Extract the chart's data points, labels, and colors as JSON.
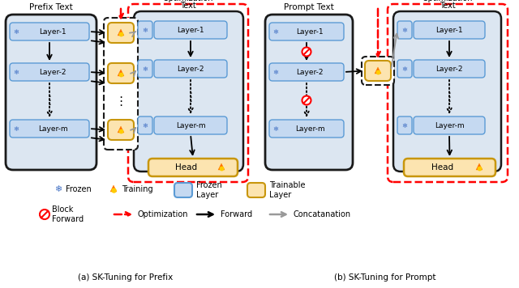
{
  "fig_width": 6.4,
  "fig_height": 3.56,
  "dpi": 100,
  "bg_color": "#ffffff",
  "frozen_box_fc": "#c5d9f1",
  "frozen_box_ec": "#5b9bd5",
  "trainable_box_fc": "#fce4b0",
  "trainable_box_ec": "#c8960c",
  "outer_box_fc": "#dce6f1",
  "outer_box_ec": "#1a1a1a",
  "snow_color": "#4472c4",
  "arrow_black": "#1a1a1a",
  "arrow_gray": "#999999",
  "arrow_red": "#ff0000",
  "block_red": "#ff0000",
  "opt_box_ec": "#ff0000",
  "title_a": "(a) SK-Tuning for Prefix",
  "title_b": "(b) SK-Tuning for Prompt",
  "prefix_text": "Prefix Text",
  "prompt_text": "Prompt Text",
  "opt_text_line1": "Optimization",
  "opt_text_line2": "Text",
  "layers": [
    "Layer-1",
    "Layer-2",
    "Layer-m"
  ],
  "head_text": "Head",
  "leg_frozen": "Frozen",
  "leg_training": "Training",
  "leg_frozen_layer": "Frozen\nLayer",
  "leg_trainable_layer": "Trainable\nLayer",
  "leg_block": "Block\nForward",
  "leg_opt": "Optimization",
  "leg_fwd": "Forward",
  "leg_concat": "Concatanation"
}
